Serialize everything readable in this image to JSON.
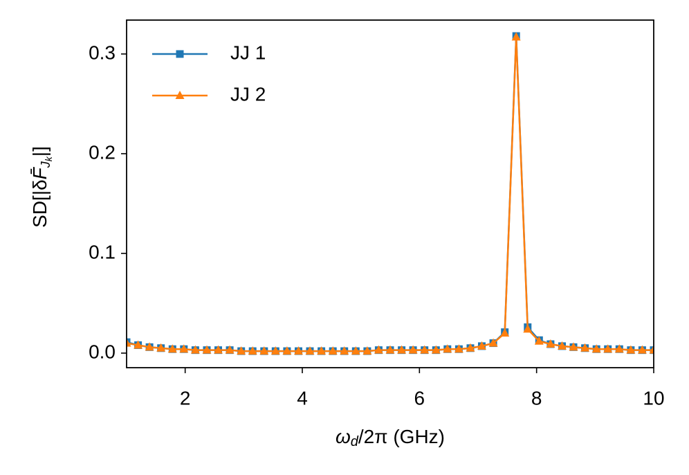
{
  "chart_data": {
    "type": "line",
    "x_label": [
      "ω",
      "d",
      "/2π (GHz)"
    ],
    "y_label": [
      "SD[|δ",
      "F̄",
      "J",
      "k",
      "|]"
    ],
    "x": [
      1,
      1.196,
      1.391,
      1.587,
      1.783,
      1.978,
      2.174,
      2.37,
      2.565,
      2.761,
      2.957,
      3.152,
      3.348,
      3.543,
      3.739,
      3.935,
      4.13,
      4.326,
      4.522,
      4.717,
      4.913,
      5.109,
      5.304,
      5.5,
      5.696,
      5.891,
      6.087,
      6.283,
      6.478,
      6.674,
      6.87,
      7.065,
      7.261,
      7.457,
      7.652,
      7.848,
      8.043,
      8.239,
      8.435,
      8.63,
      8.826,
      9.022,
      9.217,
      9.413,
      9.609,
      9.804,
      10
    ],
    "series": [
      {
        "name": "JJ 1",
        "color": "#1f77b4",
        "marker": "square",
        "values": [
          0.011,
          0.008,
          0.006,
          0.005,
          0.004,
          0.004,
          0.003,
          0.003,
          0.003,
          0.003,
          0.002,
          0.002,
          0.002,
          0.002,
          0.002,
          0.002,
          0.002,
          0.002,
          0.002,
          0.002,
          0.002,
          0.002,
          0.003,
          0.003,
          0.003,
          0.003,
          0.003,
          0.003,
          0.004,
          0.004,
          0.005,
          0.007,
          0.01,
          0.021,
          0.318,
          0.026,
          0.013,
          0.009,
          0.007,
          0.006,
          0.005,
          0.004,
          0.004,
          0.004,
          0.003,
          0.003,
          0.003
        ]
      },
      {
        "name": "JJ 2",
        "color": "#ff7f0e",
        "marker": "triangle",
        "values": [
          0.01,
          0.008,
          0.006,
          0.005,
          0.004,
          0.004,
          0.003,
          0.003,
          0.003,
          0.003,
          0.002,
          0.002,
          0.002,
          0.002,
          0.002,
          0.002,
          0.002,
          0.002,
          0.002,
          0.002,
          0.002,
          0.002,
          0.003,
          0.003,
          0.003,
          0.003,
          0.003,
          0.003,
          0.004,
          0.004,
          0.005,
          0.007,
          0.01,
          0.02,
          0.317,
          0.024,
          0.012,
          0.009,
          0.007,
          0.006,
          0.005,
          0.004,
          0.004,
          0.004,
          0.003,
          0.003,
          0.003
        ]
      }
    ],
    "xlim": [
      1,
      10
    ],
    "xticks": [
      2,
      4,
      6,
      8,
      10
    ],
    "ylim": [
      -0.0146,
      0.334
    ],
    "yticks": [
      {
        "value": 0,
        "label": "0.0"
      },
      {
        "value": 0.1,
        "label": "0.1"
      },
      {
        "value": 0.2,
        "label": "0.2"
      },
      {
        "value": 0.3,
        "label": "0.3"
      }
    ],
    "legend": "upper left",
    "grid": false
  }
}
